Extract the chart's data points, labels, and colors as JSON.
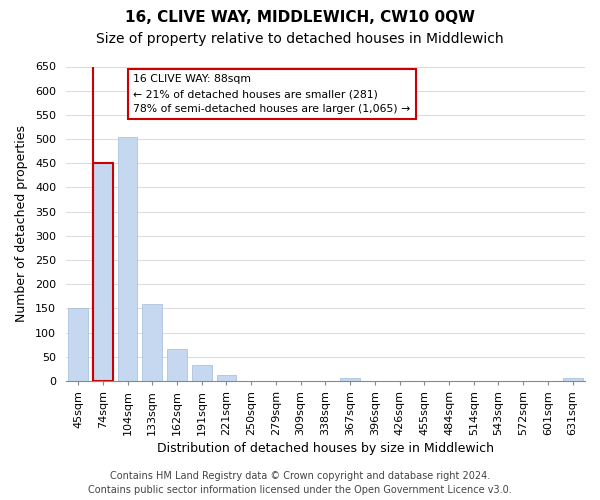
{
  "title": "16, CLIVE WAY, MIDDLEWICH, CW10 0QW",
  "subtitle": "Size of property relative to detached houses in Middlewich",
  "xlabel": "Distribution of detached houses by size in Middlewich",
  "ylabel": "Number of detached properties",
  "categories": [
    "45sqm",
    "74sqm",
    "104sqm",
    "133sqm",
    "162sqm",
    "191sqm",
    "221sqm",
    "250sqm",
    "279sqm",
    "309sqm",
    "338sqm",
    "367sqm",
    "396sqm",
    "426sqm",
    "455sqm",
    "484sqm",
    "514sqm",
    "543sqm",
    "572sqm",
    "601sqm",
    "631sqm"
  ],
  "values": [
    150,
    450,
    505,
    160,
    65,
    32,
    12,
    0,
    0,
    0,
    0,
    5,
    0,
    0,
    0,
    0,
    0,
    0,
    0,
    0,
    5
  ],
  "bar_color": "#c5d8f0",
  "bar_edge_color": "#a0bcd8",
  "highlight_bar_index": 1,
  "highlight_edge_color": "#cc0000",
  "vline_color": "#cc0000",
  "annotation_line1": "16 CLIVE WAY: 88sqm",
  "annotation_line2": "← 21% of detached houses are smaller (281)",
  "annotation_line3": "78% of semi-detached houses are larger (1,065) →",
  "box_edge_color": "#cc0000",
  "ylim": [
    0,
    650
  ],
  "yticks": [
    0,
    50,
    100,
    150,
    200,
    250,
    300,
    350,
    400,
    450,
    500,
    550,
    600,
    650
  ],
  "footer_line1": "Contains HM Land Registry data © Crown copyright and database right 2024.",
  "footer_line2": "Contains public sector information licensed under the Open Government Licence v3.0.",
  "title_fontsize": 11,
  "subtitle_fontsize": 10,
  "xlabel_fontsize": 9,
  "ylabel_fontsize": 9,
  "tick_fontsize": 8,
  "footer_fontsize": 7,
  "background_color": "#ffffff",
  "grid_color": "#cccccc"
}
